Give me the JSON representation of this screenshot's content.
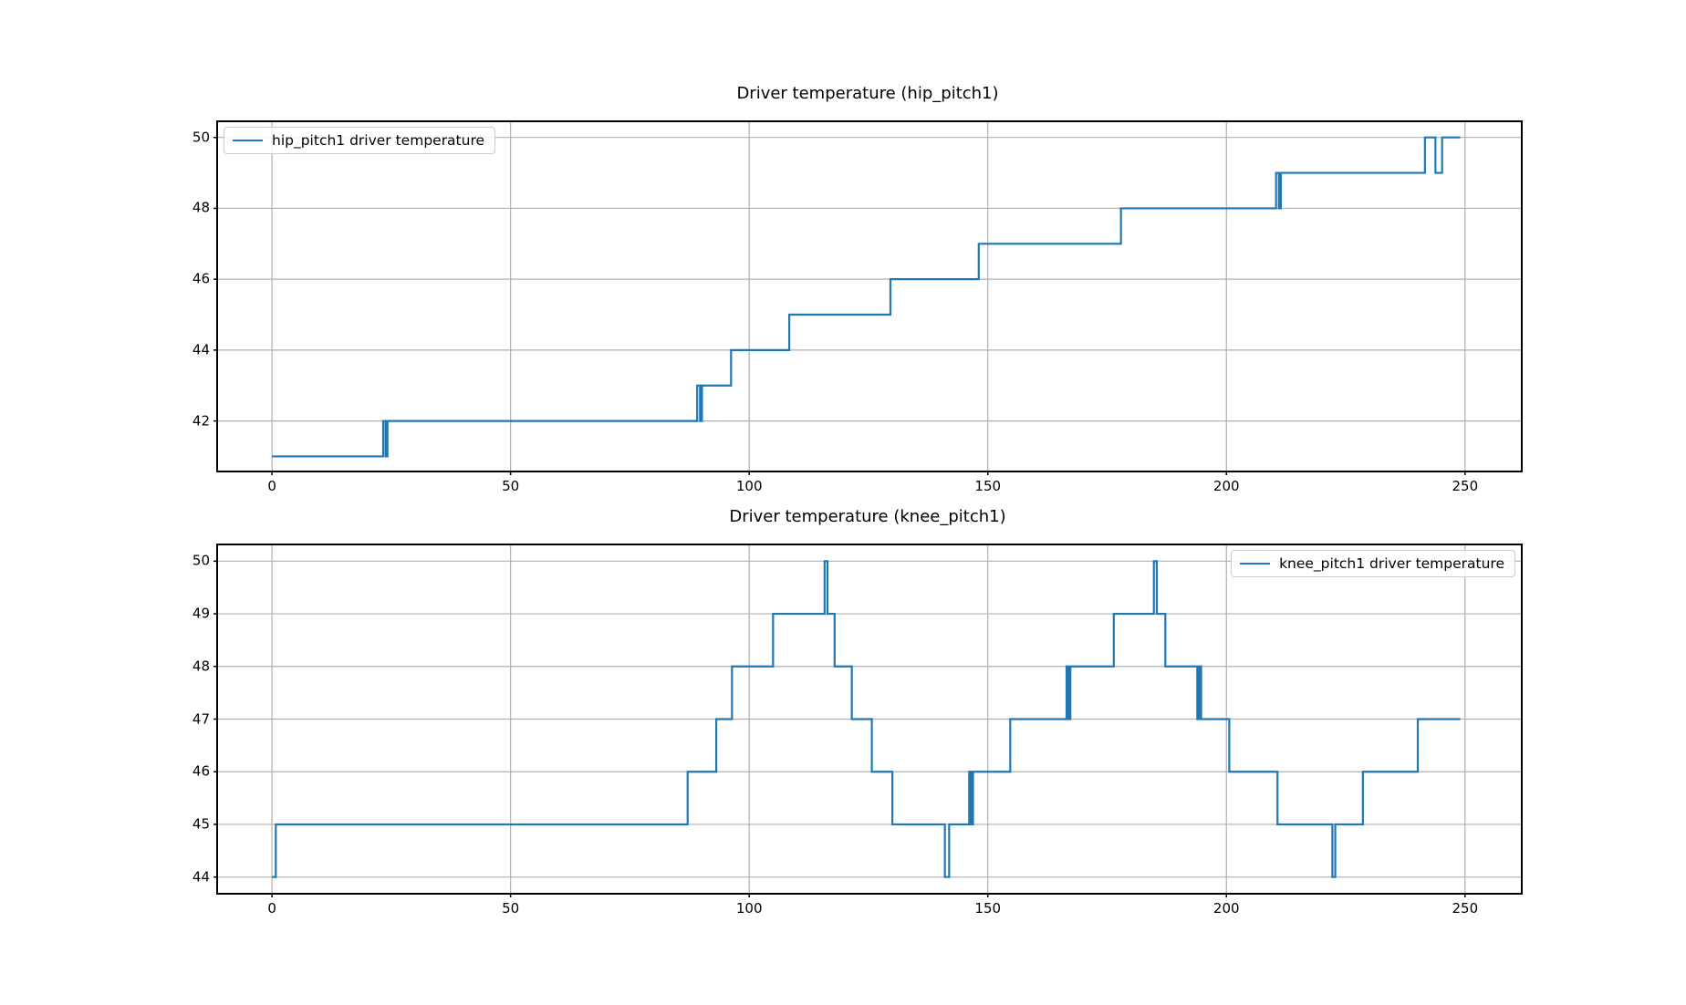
{
  "figure": {
    "background": "#ffffff"
  },
  "chart_data": [
    {
      "type": "line",
      "step_mode": "post",
      "title": "Driver temperature (hip_pitch1)",
      "legend": {
        "label": "hip_pitch1 driver temperature",
        "position": "top-left"
      },
      "line_color": "#1f77b4",
      "grid": true,
      "grid_color": "#b0b0b0",
      "xlim": [
        -11.3,
        261.7
      ],
      "ylim": [
        40.6,
        50.43
      ],
      "xticks": [
        0,
        50,
        100,
        150,
        200,
        250
      ],
      "yticks": [
        42,
        44,
        46,
        48,
        50
      ],
      "x_end": 249,
      "points": [
        [
          0,
          41
        ],
        [
          23.3,
          42
        ],
        [
          23.8,
          41
        ],
        [
          24.2,
          42
        ],
        [
          89.1,
          43
        ],
        [
          89.7,
          42
        ],
        [
          90.1,
          43
        ],
        [
          96.2,
          44
        ],
        [
          108.4,
          45
        ],
        [
          129.6,
          46
        ],
        [
          148.1,
          47
        ],
        [
          177.9,
          48
        ],
        [
          210.4,
          49
        ],
        [
          211.0,
          48
        ],
        [
          211.4,
          49
        ],
        [
          241.6,
          50
        ],
        [
          243.8,
          49
        ],
        [
          245.2,
          50
        ]
      ]
    },
    {
      "type": "line",
      "step_mode": "post",
      "title": "Driver temperature (knee_pitch1)",
      "legend": {
        "label": "knee_pitch1 driver temperature",
        "position": "top-right"
      },
      "line_color": "#1f77b4",
      "grid": true,
      "grid_color": "#b0b0b0",
      "xlim": [
        -11.3,
        261.7
      ],
      "ylim": [
        43.7,
        50.3
      ],
      "xticks": [
        0,
        50,
        100,
        150,
        200,
        250
      ],
      "yticks": [
        44,
        45,
        46,
        47,
        48,
        49,
        50
      ],
      "x_end": 249,
      "points": [
        [
          0,
          44
        ],
        [
          0.8,
          45
        ],
        [
          87.1,
          46
        ],
        [
          93.1,
          47
        ],
        [
          96.4,
          48
        ],
        [
          105.0,
          49
        ],
        [
          115.8,
          50
        ],
        [
          116.4,
          49
        ],
        [
          117.9,
          48
        ],
        [
          121.5,
          47
        ],
        [
          125.7,
          46
        ],
        [
          130.0,
          45
        ],
        [
          141.0,
          44
        ],
        [
          141.9,
          45
        ],
        [
          146.1,
          46
        ],
        [
          146.5,
          45
        ],
        [
          146.9,
          46
        ],
        [
          154.7,
          47
        ],
        [
          166.5,
          48
        ],
        [
          166.9,
          47
        ],
        [
          167.3,
          48
        ],
        [
          176.4,
          49
        ],
        [
          184.8,
          50
        ],
        [
          185.4,
          49
        ],
        [
          187.2,
          48
        ],
        [
          193.9,
          47
        ],
        [
          194.3,
          48
        ],
        [
          194.7,
          47
        ],
        [
          200.6,
          46
        ],
        [
          210.7,
          45
        ],
        [
          222.2,
          44
        ],
        [
          222.8,
          45
        ],
        [
          228.6,
          46
        ],
        [
          240.1,
          47
        ]
      ]
    }
  ]
}
